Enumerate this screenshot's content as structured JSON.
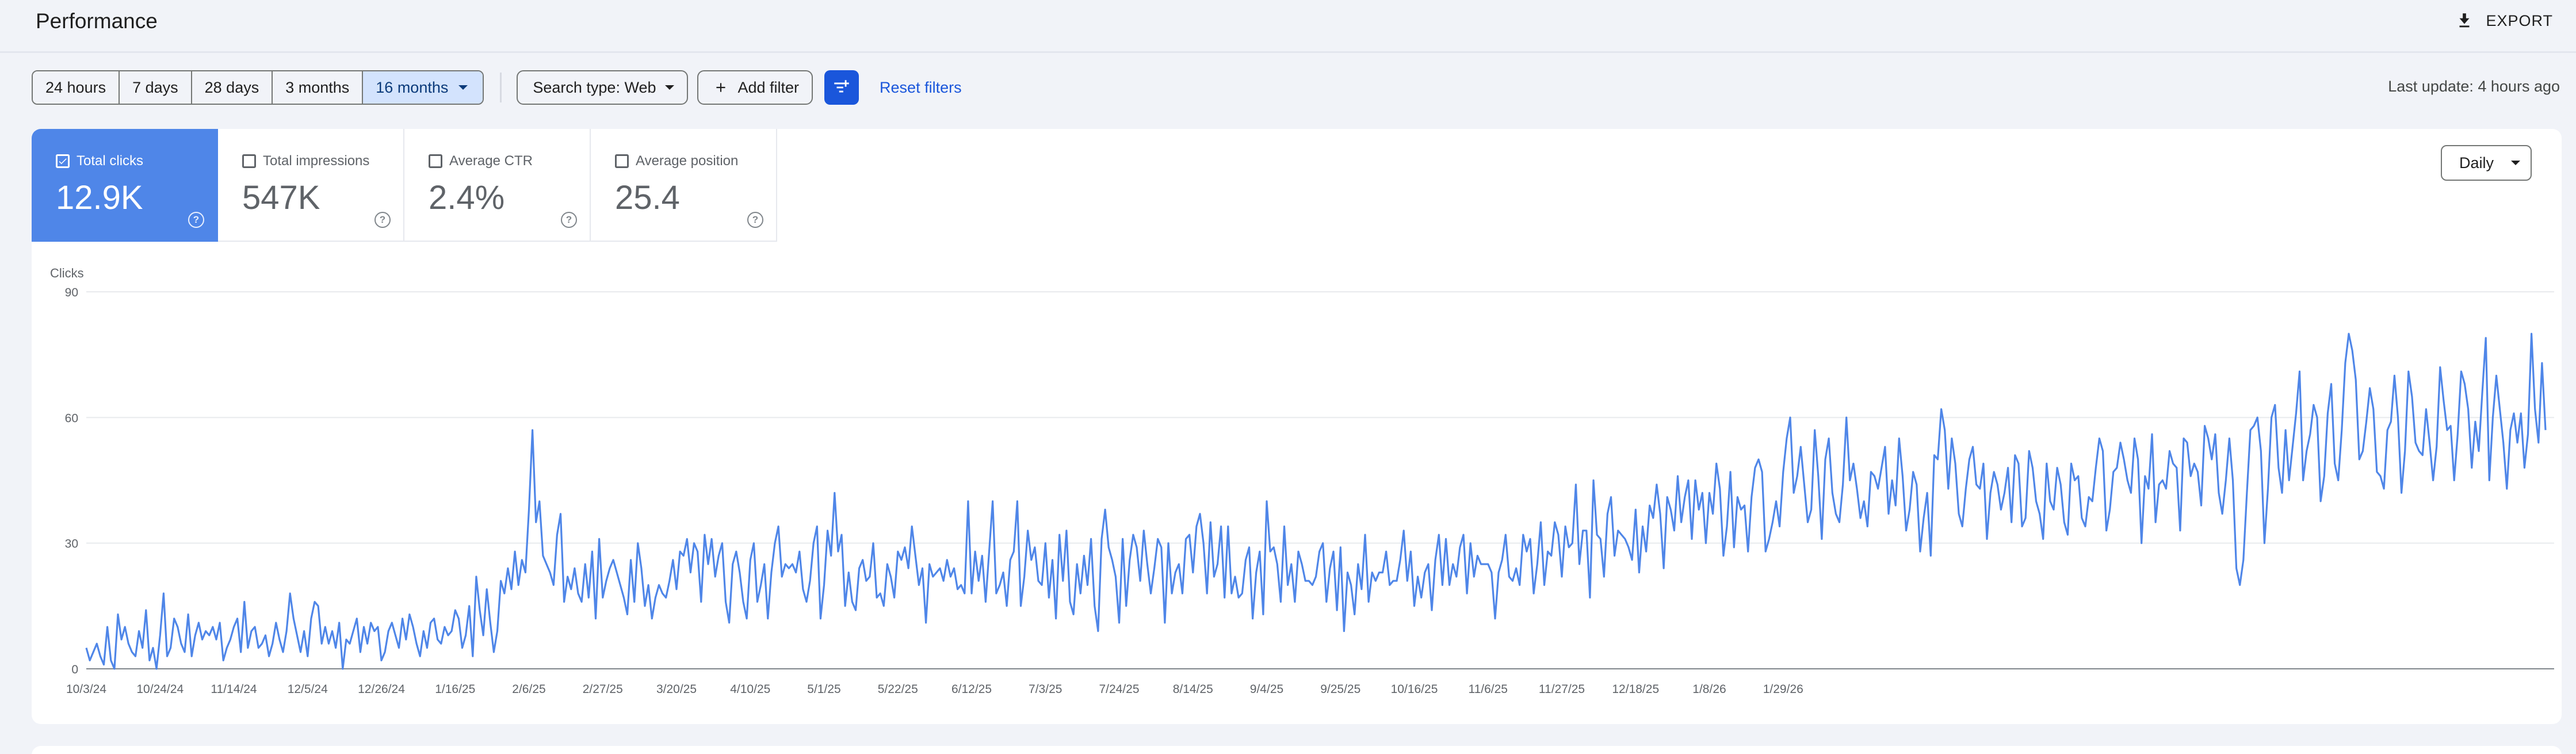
{
  "header": {
    "title": "Performance",
    "export_label": "EXPORT"
  },
  "filters": {
    "ranges": [
      "24 hours",
      "7 days",
      "28 days",
      "3 months",
      "16 months"
    ],
    "active_range": "16 months",
    "search_type": "Search type: Web",
    "add_filter": "Add filter",
    "reset": "Reset filters",
    "last_update": "Last update: 4 hours ago"
  },
  "metrics": [
    {
      "label": "Total clicks",
      "value": "12.9K",
      "selected": true
    },
    {
      "label": "Total impressions",
      "value": "547K",
      "selected": false
    },
    {
      "label": "Average CTR",
      "value": "2.4%",
      "selected": false
    },
    {
      "label": "Average position",
      "value": "25.4",
      "selected": false
    }
  ],
  "granularity": "Daily",
  "colors": {
    "accent": "#1a56db",
    "clicks_line": "#4f86e8",
    "selected_card": "#4f86e8"
  },
  "chart_data": {
    "type": "line",
    "ylabel": "Clicks",
    "ylim": [
      0,
      90
    ],
    "yticks": [
      "90",
      "60",
      "30",
      "0"
    ],
    "x_ticks": [
      "10/3/24",
      "10/24/24",
      "11/14/24",
      "12/5/24",
      "12/26/24",
      "1/16/25",
      "2/6/25",
      "2/27/25",
      "3/20/25",
      "4/10/25",
      "5/1/25",
      "5/22/25",
      "6/12/25",
      "7/3/25",
      "7/24/25",
      "8/14/25",
      "9/4/25",
      "9/25/25",
      "10/16/25",
      "11/6/25",
      "11/27/25",
      "12/18/25",
      "1/8/26",
      "1/29/26"
    ],
    "x_range": [
      "2024-10-03",
      "2026-02-03"
    ],
    "series": [
      {
        "values": [
          5,
          2,
          4,
          6,
          3,
          1,
          10,
          2,
          0,
          13,
          7,
          10,
          6,
          4,
          3,
          9,
          5,
          14,
          2,
          5,
          0,
          8,
          18,
          3,
          5,
          12,
          10,
          6,
          4,
          13,
          3,
          8,
          11,
          7,
          9,
          8,
          10,
          7,
          11,
          2,
          5,
          7,
          10,
          12,
          4,
          16,
          5,
          9,
          10,
          5,
          6,
          8,
          3,
          6,
          11,
          7,
          4,
          9,
          18,
          12,
          8,
          4,
          9,
          3,
          12,
          16,
          15,
          6,
          10,
          6,
          9,
          5,
          11,
          0,
          7,
          6,
          9,
          12,
          4,
          10,
          6,
          11,
          9,
          10,
          2,
          4,
          9,
          11,
          8,
          5,
          12,
          7,
          13,
          10,
          6,
          3,
          9,
          5,
          11,
          12,
          7,
          6,
          10,
          8,
          9,
          14,
          12,
          5,
          8,
          15,
          3,
          22,
          14,
          8,
          19,
          11,
          4,
          9,
          21,
          18,
          24,
          19,
          28,
          20,
          26,
          23,
          38,
          57,
          35,
          40,
          27,
          25,
          23,
          20,
          32,
          37,
          16,
          22,
          19,
          24,
          18,
          16,
          25,
          17,
          28,
          12,
          31,
          17,
          21,
          24,
          26,
          23,
          20,
          17,
          13,
          26,
          16,
          30,
          24,
          15,
          20,
          12,
          17,
          20,
          18,
          17,
          21,
          26,
          19,
          28,
          27,
          31,
          23,
          30,
          28,
          16,
          32,
          25,
          31,
          22,
          27,
          30,
          16,
          11,
          25,
          28,
          23,
          16,
          12,
          26,
          30,
          16,
          20,
          25,
          12,
          23,
          30,
          34,
          22,
          25,
          24,
          25,
          23,
          28,
          19,
          16,
          21,
          30,
          34,
          12,
          20,
          33,
          27,
          42,
          28,
          32,
          15,
          23,
          16,
          14,
          24,
          26,
          21,
          22,
          30,
          17,
          18,
          15,
          25,
          22,
          17,
          28,
          26,
          29,
          24,
          34,
          27,
          20,
          24,
          11,
          25,
          22,
          23,
          24,
          21,
          26,
          22,
          24,
          19,
          20,
          18,
          40,
          18,
          28,
          21,
          27,
          16,
          28,
          40,
          18,
          20,
          23,
          15,
          26,
          28,
          40,
          15,
          22,
          33,
          26,
          29,
          21,
          20,
          30,
          17,
          26,
          12,
          32,
          21,
          33,
          16,
          13,
          25,
          18,
          27,
          20,
          31,
          15,
          9,
          31,
          38,
          29,
          26,
          22,
          11,
          31,
          15,
          26,
          32,
          29,
          21,
          33,
          25,
          18,
          24,
          31,
          29,
          11,
          30,
          18,
          23,
          25,
          18,
          31,
          32,
          23,
          34,
          37,
          30,
          18,
          35,
          22,
          25,
          34,
          17,
          34,
          18,
          22,
          17,
          18,
          26,
          29,
          12,
          23,
          28,
          13,
          40,
          28,
          29,
          25,
          16,
          34,
          20,
          25,
          16,
          28,
          25,
          21,
          21,
          20,
          22,
          28,
          30,
          16,
          24,
          28,
          14,
          29,
          9,
          23,
          20,
          13,
          25,
          19,
          32,
          16,
          23,
          21,
          23,
          23,
          28,
          20,
          21,
          21,
          26,
          33,
          21,
          28,
          15,
          22,
          17,
          23,
          25,
          14,
          26,
          32,
          20,
          31,
          20,
          25,
          22,
          29,
          32,
          18,
          30,
          22,
          27,
          25,
          25,
          25,
          23,
          12,
          23,
          26,
          32,
          22,
          21,
          24,
          20,
          32,
          28,
          31,
          18,
          25,
          35,
          20,
          28,
          27,
          35,
          32,
          22,
          34,
          29,
          30,
          44,
          25,
          33,
          33,
          17,
          45,
          32,
          31,
          22,
          37,
          41,
          27,
          33,
          32,
          31,
          29,
          26,
          38,
          23,
          34,
          28,
          39,
          36,
          44,
          37,
          24,
          41,
          38,
          33,
          46,
          35,
          41,
          45,
          31,
          45,
          38,
          42,
          30,
          42,
          37,
          49,
          43,
          27,
          34,
          47,
          29,
          41,
          38,
          39,
          28,
          41,
          48,
          50,
          47,
          28,
          31,
          35,
          40,
          34,
          47,
          55,
          60,
          42,
          46,
          53,
          44,
          35,
          38,
          57,
          46,
          31,
          50,
          55,
          42,
          37,
          35,
          44,
          60,
          45,
          49,
          43,
          36,
          40,
          34,
          47,
          46,
          43,
          48,
          53,
          37,
          45,
          39,
          55,
          46,
          33,
          38,
          47,
          44,
          28,
          36,
          42,
          27,
          51,
          50,
          62,
          57,
          43,
          55,
          49,
          37,
          34,
          43,
          50,
          53,
          44,
          43,
          49,
          31,
          42,
          47,
          44,
          38,
          42,
          48,
          35,
          51,
          49,
          34,
          36,
          52,
          48,
          40,
          37,
          31,
          49,
          40,
          38,
          48,
          44,
          35,
          32,
          49,
          45,
          46,
          36,
          34,
          41,
          40,
          48,
          55,
          52,
          33,
          38,
          47,
          48,
          54,
          50,
          45,
          42,
          55,
          50,
          30,
          46,
          43,
          56,
          35,
          44,
          45,
          43,
          52,
          49,
          48,
          33,
          55,
          54,
          46,
          49,
          47,
          39,
          58,
          55,
          50,
          56,
          42,
          37,
          45,
          55,
          45,
          24,
          20,
          26,
          42,
          57,
          58,
          60,
          52,
          30,
          43,
          60,
          63,
          48,
          42,
          57,
          45,
          53,
          61,
          71,
          45,
          52,
          56,
          63,
          60,
          40,
          46,
          61,
          68,
          49,
          45,
          57,
          73,
          80,
          76,
          69,
          50,
          52,
          59,
          67,
          62,
          47,
          46,
          43,
          57,
          59,
          70,
          60,
          42,
          52,
          71,
          65,
          54,
          52,
          51,
          62,
          54,
          45,
          53,
          72,
          64,
          57,
          58,
          45,
          56,
          71,
          68,
          62,
          48,
          59,
          52,
          66,
          79,
          45,
          60,
          70,
          62,
          54,
          43,
          57,
          61,
          54,
          61,
          48,
          56,
          80,
          62,
          54,
          73,
          57
        ]
      }
    ]
  }
}
